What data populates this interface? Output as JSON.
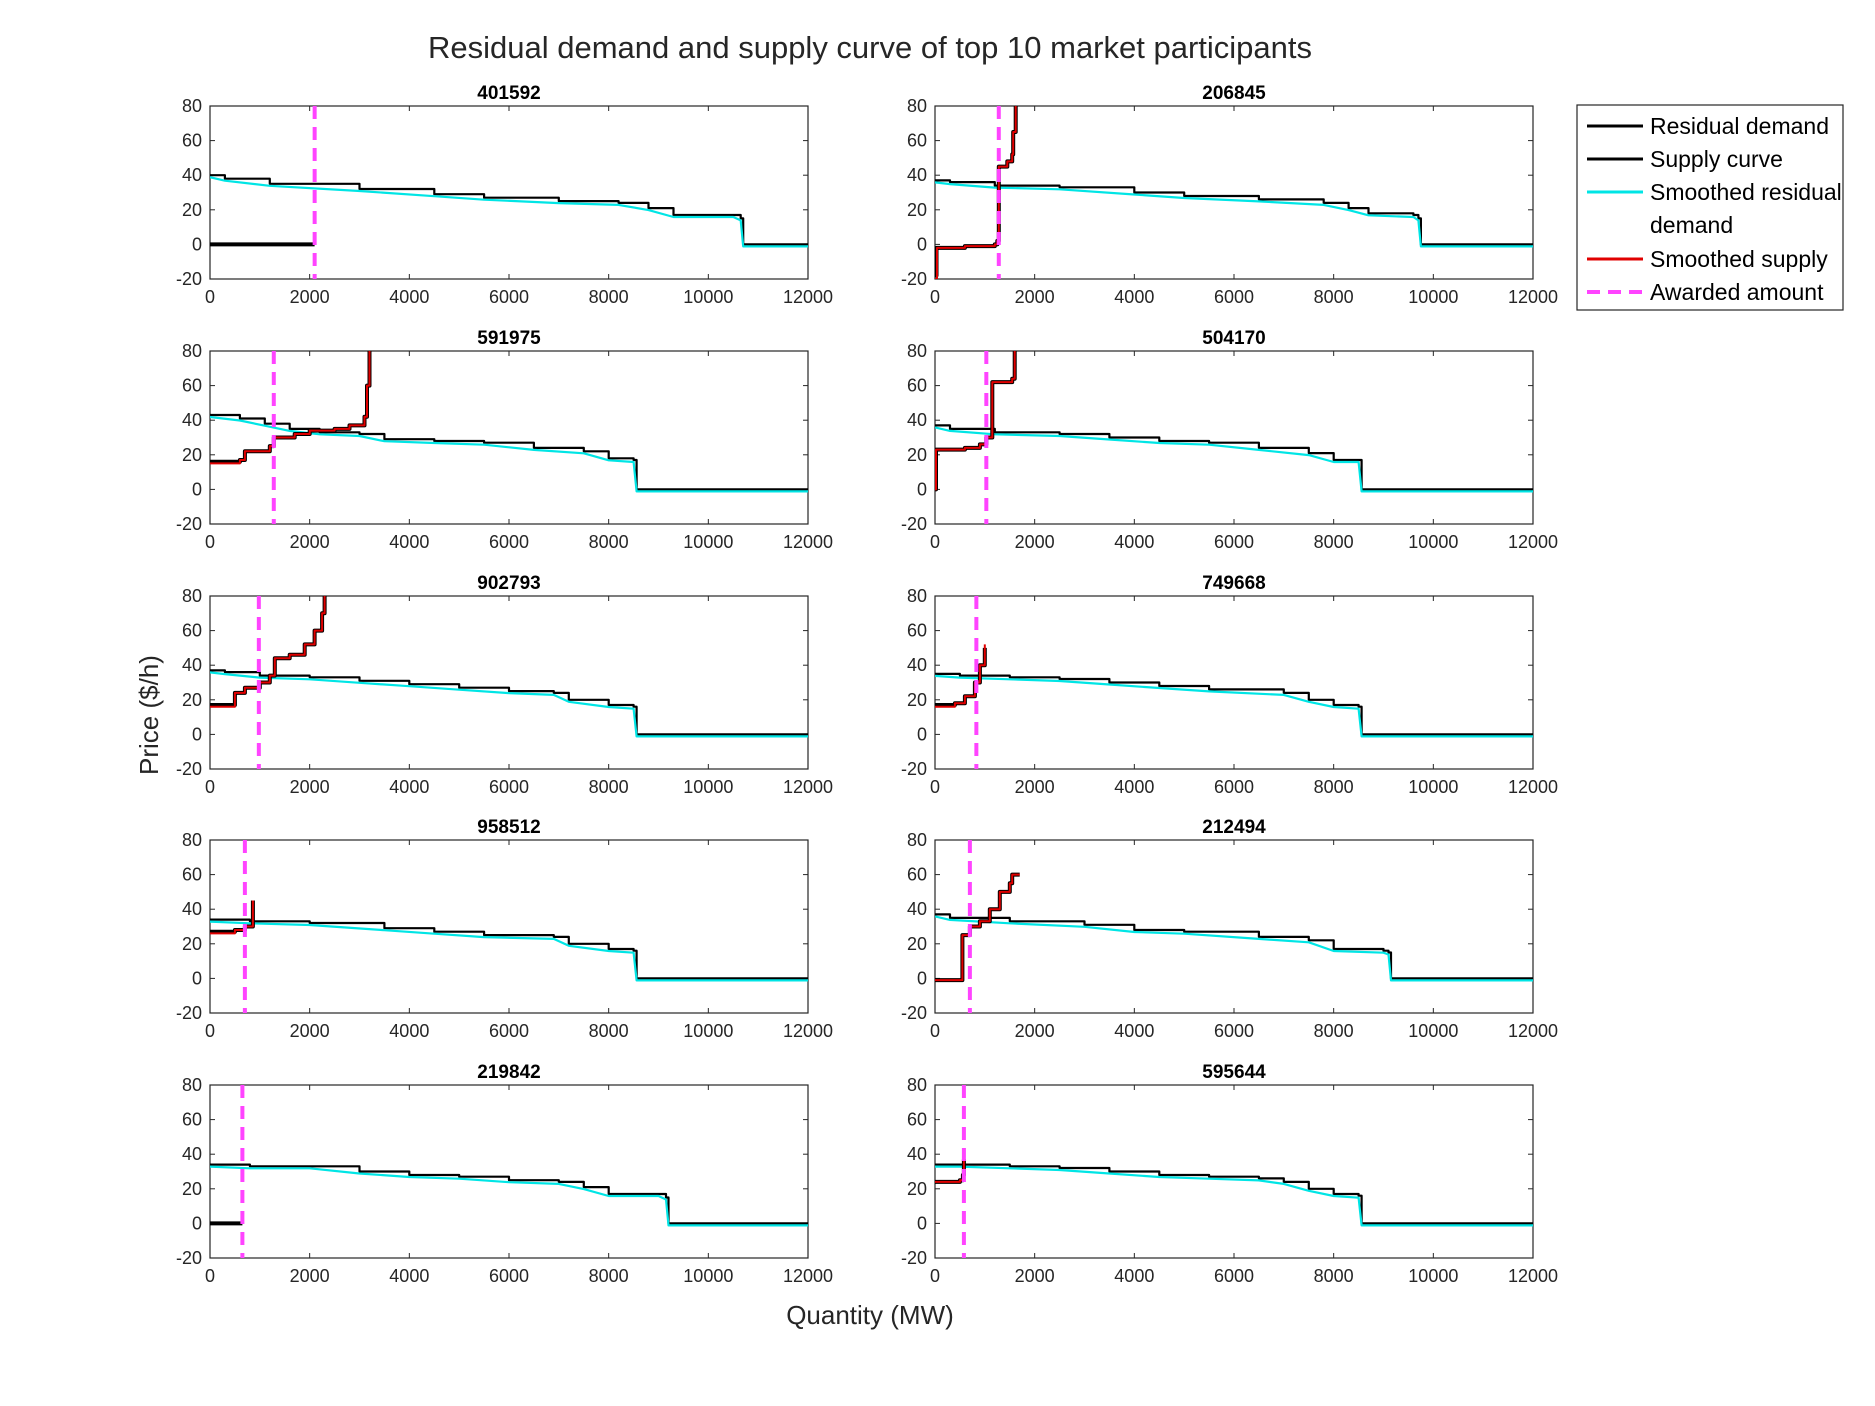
{
  "figure": {
    "title": "Residual demand and supply curve of top 10 market participants",
    "xlabel": "Quantity (MW)",
    "ylabel": "Price ($/h)"
  },
  "colors": {
    "residual_demand": "#000000",
    "supply_curve": "#000000",
    "smoothed_residual_demand": "#00e5e5",
    "smoothed_supply": "#e00000",
    "awarded_amount": "#ff44ff"
  },
  "legend": {
    "position": "outside-right",
    "entries": [
      {
        "key": "residual_demand",
        "label": "Residual demand",
        "style": "solid"
      },
      {
        "key": "supply_curve",
        "label": "Supply curve",
        "style": "solid"
      },
      {
        "key": "smoothed_residual_demand",
        "label": "Smoothed residual",
        "label2": "demand",
        "style": "solid"
      },
      {
        "key": "smoothed_supply",
        "label": "Smoothed supply",
        "style": "solid"
      },
      {
        "key": "awarded_amount",
        "label": "Awarded amount",
        "style": "dashed"
      }
    ]
  },
  "chart_data": [
    {
      "type": "line",
      "title": "401592",
      "xlim": [
        0,
        12000
      ],
      "ylim": [
        -20,
        80
      ],
      "xticks": [
        0,
        2000,
        4000,
        6000,
        8000,
        10000,
        12000
      ],
      "yticks": [
        -20,
        0,
        20,
        40,
        60,
        80
      ],
      "awarded": 2100,
      "residual_demand": [
        [
          0,
          40
        ],
        [
          300,
          38
        ],
        [
          1200,
          35
        ],
        [
          3000,
          32
        ],
        [
          4500,
          29
        ],
        [
          5500,
          27
        ],
        [
          7000,
          25
        ],
        [
          8200,
          24
        ],
        [
          8800,
          21
        ],
        [
          9300,
          17
        ],
        [
          10500,
          17
        ],
        [
          10650,
          15
        ],
        [
          10700,
          0
        ],
        [
          12000,
          0
        ]
      ],
      "supply": [
        [
          0,
          0
        ],
        [
          2100,
          0
        ]
      ],
      "smoothed_supply": []
    },
    {
      "type": "line",
      "title": "206845",
      "xlim": [
        0,
        12000
      ],
      "ylim": [
        -20,
        80
      ],
      "xticks": [
        0,
        2000,
        4000,
        6000,
        8000,
        10000,
        12000
      ],
      "yticks": [
        -20,
        0,
        20,
        40,
        60,
        80
      ],
      "awarded": 1280,
      "residual_demand": [
        [
          0,
          37
        ],
        [
          300,
          36
        ],
        [
          1200,
          34
        ],
        [
          2500,
          33
        ],
        [
          4000,
          30
        ],
        [
          5000,
          28
        ],
        [
          6500,
          26
        ],
        [
          7800,
          24
        ],
        [
          8300,
          21
        ],
        [
          8700,
          18
        ],
        [
          9600,
          17
        ],
        [
          9700,
          15
        ],
        [
          9750,
          0
        ],
        [
          12000,
          0
        ]
      ],
      "supply": [
        [
          0,
          -18
        ],
        [
          30,
          -2
        ],
        [
          600,
          -1
        ],
        [
          1200,
          0
        ],
        [
          1250,
          2
        ],
        [
          1280,
          45
        ],
        [
          1450,
          48
        ],
        [
          1550,
          52
        ],
        [
          1570,
          65
        ],
        [
          1620,
          80
        ]
      ],
      "smoothed_supply": [
        [
          0,
          -20
        ],
        [
          40,
          -2
        ],
        [
          600,
          -1
        ],
        [
          1200,
          0
        ],
        [
          1250,
          2
        ],
        [
          1280,
          45
        ],
        [
          1450,
          48
        ],
        [
          1550,
          52
        ],
        [
          1570,
          65
        ],
        [
          1620,
          80
        ]
      ]
    },
    {
      "type": "line",
      "title": "591975",
      "xlim": [
        0,
        12000
      ],
      "ylim": [
        -20,
        80
      ],
      "xticks": [
        0,
        2000,
        4000,
        6000,
        8000,
        10000,
        12000
      ],
      "yticks": [
        -20,
        0,
        20,
        40,
        60,
        80
      ],
      "awarded": 1280,
      "residual_demand": [
        [
          0,
          43
        ],
        [
          600,
          41
        ],
        [
          1100,
          38
        ],
        [
          1600,
          35
        ],
        [
          2200,
          33
        ],
        [
          3000,
          32
        ],
        [
          3500,
          29
        ],
        [
          4500,
          28
        ],
        [
          5500,
          27
        ],
        [
          6500,
          24
        ],
        [
          7500,
          22
        ],
        [
          8000,
          18
        ],
        [
          8500,
          17
        ],
        [
          8560,
          0
        ],
        [
          12000,
          0
        ]
      ],
      "supply": [
        [
          0,
          16
        ],
        [
          600,
          17
        ],
        [
          700,
          22
        ],
        [
          1200,
          25
        ],
        [
          1280,
          30
        ],
        [
          1700,
          32
        ],
        [
          2000,
          34
        ],
        [
          2500,
          35
        ],
        [
          2800,
          37
        ],
        [
          3100,
          42
        ],
        [
          3150,
          60
        ],
        [
          3200,
          80
        ]
      ],
      "smoothed_supply": [
        [
          0,
          15
        ],
        [
          600,
          17
        ],
        [
          700,
          22
        ],
        [
          1200,
          25
        ],
        [
          1280,
          30
        ],
        [
          1700,
          32
        ],
        [
          2000,
          34
        ],
        [
          2500,
          35
        ],
        [
          2800,
          37
        ],
        [
          3100,
          42
        ],
        [
          3150,
          60
        ],
        [
          3200,
          80
        ]
      ]
    },
    {
      "type": "line",
      "title": "504170",
      "xlim": [
        0,
        12000
      ],
      "ylim": [
        -20,
        80
      ],
      "xticks": [
        0,
        2000,
        4000,
        6000,
        8000,
        10000,
        12000
      ],
      "yticks": [
        -20,
        0,
        20,
        40,
        60,
        80
      ],
      "awarded": 1030,
      "residual_demand": [
        [
          0,
          37
        ],
        [
          300,
          35
        ],
        [
          1200,
          33
        ],
        [
          2500,
          32
        ],
        [
          3500,
          30
        ],
        [
          4500,
          28
        ],
        [
          5500,
          27
        ],
        [
          6500,
          24
        ],
        [
          7500,
          21
        ],
        [
          8000,
          17
        ],
        [
          8500,
          17
        ],
        [
          8560,
          0
        ],
        [
          12000,
          0
        ]
      ],
      "supply": [
        [
          0,
          0
        ],
        [
          20,
          23
        ],
        [
          600,
          24
        ],
        [
          900,
          26
        ],
        [
          1030,
          30
        ],
        [
          1150,
          62
        ],
        [
          1550,
          64
        ],
        [
          1600,
          80
        ]
      ],
      "smoothed_supply": [
        [
          0,
          0
        ],
        [
          20,
          23
        ],
        [
          600,
          24
        ],
        [
          900,
          26
        ],
        [
          1030,
          30
        ],
        [
          1150,
          62
        ],
        [
          1550,
          64
        ],
        [
          1600,
          80
        ]
      ]
    },
    {
      "type": "line",
      "title": "902793",
      "xlim": [
        0,
        12000
      ],
      "ylim": [
        -20,
        80
      ],
      "xticks": [
        0,
        2000,
        4000,
        6000,
        8000,
        10000,
        12000
      ],
      "yticks": [
        -20,
        0,
        20,
        40,
        60,
        80
      ],
      "awarded": 980,
      "residual_demand": [
        [
          0,
          37
        ],
        [
          300,
          36
        ],
        [
          1000,
          34
        ],
        [
          2000,
          33
        ],
        [
          3000,
          31
        ],
        [
          4000,
          29
        ],
        [
          5000,
          27
        ],
        [
          6000,
          25
        ],
        [
          6900,
          24
        ],
        [
          7200,
          20
        ],
        [
          8000,
          17
        ],
        [
          8500,
          16
        ],
        [
          8560,
          0
        ],
        [
          12000,
          0
        ]
      ],
      "supply": [
        [
          0,
          17
        ],
        [
          500,
          24
        ],
        [
          700,
          27
        ],
        [
          1000,
          30
        ],
        [
          1200,
          34
        ],
        [
          1300,
          44
        ],
        [
          1600,
          46
        ],
        [
          1900,
          52
        ],
        [
          2100,
          60
        ],
        [
          2250,
          70
        ],
        [
          2300,
          80
        ]
      ],
      "smoothed_supply": [
        [
          0,
          16
        ],
        [
          500,
          24
        ],
        [
          700,
          27
        ],
        [
          1000,
          30
        ],
        [
          1200,
          34
        ],
        [
          1300,
          44
        ],
        [
          1600,
          46
        ],
        [
          1900,
          52
        ],
        [
          2100,
          60
        ],
        [
          2250,
          70
        ],
        [
          2300,
          80
        ]
      ]
    },
    {
      "type": "line",
      "title": "749668",
      "xlim": [
        0,
        12000
      ],
      "ylim": [
        -20,
        80
      ],
      "xticks": [
        0,
        2000,
        4000,
        6000,
        8000,
        10000,
        12000
      ],
      "yticks": [
        -20,
        0,
        20,
        40,
        60,
        80
      ],
      "awarded": 830,
      "residual_demand": [
        [
          0,
          35
        ],
        [
          500,
          34
        ],
        [
          1500,
          33
        ],
        [
          2500,
          32
        ],
        [
          3500,
          30
        ],
        [
          4500,
          28
        ],
        [
          5500,
          26
        ],
        [
          7000,
          24
        ],
        [
          7500,
          20
        ],
        [
          8000,
          17
        ],
        [
          8500,
          16
        ],
        [
          8560,
          0
        ],
        [
          12000,
          0
        ]
      ],
      "supply": [
        [
          0,
          17
        ],
        [
          400,
          18
        ],
        [
          600,
          22
        ],
        [
          800,
          30
        ],
        [
          900,
          40
        ],
        [
          1000,
          50
        ]
      ],
      "smoothed_supply": [
        [
          0,
          16
        ],
        [
          400,
          18
        ],
        [
          600,
          22
        ],
        [
          800,
          30
        ],
        [
          900,
          40
        ],
        [
          1000,
          52
        ]
      ]
    },
    {
      "type": "line",
      "title": "958512",
      "xlim": [
        0,
        12000
      ],
      "ylim": [
        -20,
        80
      ],
      "xticks": [
        0,
        2000,
        4000,
        6000,
        8000,
        10000,
        12000
      ],
      "yticks": [
        -20,
        0,
        20,
        40,
        60,
        80
      ],
      "awarded": 700,
      "residual_demand": [
        [
          0,
          34
        ],
        [
          800,
          33
        ],
        [
          2000,
          32
        ],
        [
          3500,
          29
        ],
        [
          4500,
          27
        ],
        [
          5500,
          25
        ],
        [
          6900,
          24
        ],
        [
          7200,
          20
        ],
        [
          8000,
          17
        ],
        [
          8500,
          16
        ],
        [
          8560,
          0
        ],
        [
          12000,
          0
        ]
      ],
      "supply": [
        [
          0,
          27
        ],
        [
          500,
          28
        ],
        [
          700,
          30
        ],
        [
          840,
          30
        ],
        [
          860,
          45
        ]
      ],
      "smoothed_supply": [
        [
          0,
          26
        ],
        [
          500,
          28
        ],
        [
          700,
          30
        ],
        [
          840,
          30
        ],
        [
          860,
          45
        ]
      ]
    },
    {
      "type": "line",
      "title": "212494",
      "xlim": [
        0,
        12000
      ],
      "ylim": [
        -20,
        80
      ],
      "xticks": [
        0,
        2000,
        4000,
        6000,
        8000,
        10000,
        12000
      ],
      "yticks": [
        -20,
        0,
        20,
        40,
        60,
        80
      ],
      "awarded": 700,
      "residual_demand": [
        [
          0,
          37
        ],
        [
          300,
          35
        ],
        [
          1500,
          33
        ],
        [
          3000,
          31
        ],
        [
          4000,
          28
        ],
        [
          5000,
          27
        ],
        [
          6500,
          24
        ],
        [
          7500,
          22
        ],
        [
          8000,
          17
        ],
        [
          9000,
          16
        ],
        [
          9100,
          15
        ],
        [
          9150,
          0
        ],
        [
          12000,
          0
        ]
      ],
      "supply": [
        [
          0,
          -1
        ],
        [
          500,
          -1
        ],
        [
          550,
          25
        ],
        [
          700,
          30
        ],
        [
          900,
          33
        ],
        [
          1100,
          40
        ],
        [
          1300,
          50
        ],
        [
          1500,
          55
        ],
        [
          1550,
          60
        ],
        [
          1700,
          60
        ]
      ],
      "smoothed_supply": [
        [
          0,
          -1
        ],
        [
          500,
          -1
        ],
        [
          550,
          25
        ],
        [
          700,
          30
        ],
        [
          900,
          33
        ],
        [
          1100,
          40
        ],
        [
          1300,
          50
        ],
        [
          1500,
          55
        ],
        [
          1550,
          60
        ],
        [
          1700,
          60
        ]
      ]
    },
    {
      "type": "line",
      "title": "219842",
      "xlim": [
        0,
        12000
      ],
      "ylim": [
        -20,
        80
      ],
      "xticks": [
        0,
        2000,
        4000,
        6000,
        8000,
        10000,
        12000
      ],
      "yticks": [
        -20,
        0,
        20,
        40,
        60,
        80
      ],
      "awarded": 650,
      "residual_demand": [
        [
          0,
          34
        ],
        [
          800,
          33
        ],
        [
          2000,
          33
        ],
        [
          3000,
          30
        ],
        [
          4000,
          28
        ],
        [
          5000,
          27
        ],
        [
          6000,
          25
        ],
        [
          7000,
          24
        ],
        [
          7500,
          21
        ],
        [
          8000,
          17
        ],
        [
          9000,
          17
        ],
        [
          9150,
          15
        ],
        [
          9200,
          0
        ],
        [
          12000,
          0
        ]
      ],
      "supply": [
        [
          0,
          0
        ],
        [
          650,
          0
        ]
      ],
      "smoothed_supply": []
    },
    {
      "type": "line",
      "title": "595644",
      "xlim": [
        0,
        12000
      ],
      "ylim": [
        -20,
        80
      ],
      "xticks": [
        0,
        2000,
        4000,
        6000,
        8000,
        10000,
        12000
      ],
      "yticks": [
        -20,
        0,
        20,
        40,
        60,
        80
      ],
      "awarded": 580,
      "residual_demand": [
        [
          0,
          34
        ],
        [
          500,
          34
        ],
        [
          1500,
          33
        ],
        [
          2500,
          32
        ],
        [
          3500,
          30
        ],
        [
          4500,
          28
        ],
        [
          5500,
          27
        ],
        [
          6500,
          26
        ],
        [
          7000,
          24
        ],
        [
          7500,
          20
        ],
        [
          8000,
          17
        ],
        [
          8500,
          16
        ],
        [
          8560,
          0
        ],
        [
          12000,
          0
        ]
      ],
      "supply": [
        [
          0,
          24
        ],
        [
          500,
          25
        ],
        [
          560,
          28
        ],
        [
          580,
          37
        ]
      ],
      "smoothed_supply": [
        [
          0,
          24
        ],
        [
          500,
          25
        ],
        [
          560,
          28
        ],
        [
          580,
          37
        ]
      ]
    }
  ]
}
